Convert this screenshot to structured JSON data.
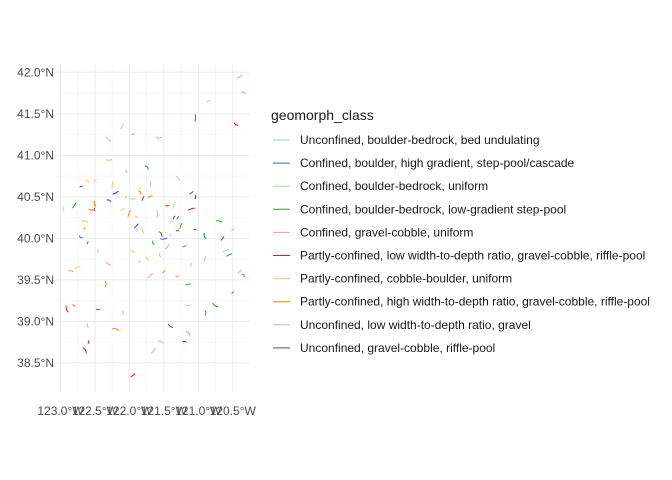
{
  "chart_data": {
    "type": "scatter",
    "title": "",
    "xlabel": "",
    "ylabel": "",
    "xlim": [
      -123.05,
      -120.25
    ],
    "ylim": [
      38.15,
      42.1
    ],
    "grid": true,
    "x_ticks": [
      -123.0,
      -122.5,
      -122.0,
      -121.5,
      -121.0,
      -120.5
    ],
    "x_tick_labels": [
      "123.0°W",
      "122.5°W",
      "122.0°W",
      "121.5°W",
      "121.0°W",
      "120.5°W"
    ],
    "y_ticks": [
      38.5,
      39.0,
      39.5,
      40.0,
      40.5,
      41.0,
      41.5,
      42.0
    ],
    "y_tick_labels": [
      "38.5°N",
      "39.0°N",
      "39.5°N",
      "40.0°N",
      "40.5°N",
      "41.0°N",
      "41.5°N",
      "42.0°N"
    ],
    "legend_title": "geomorph_class",
    "legend_position": "right",
    "series": [
      {
        "name": "Unconfined, boulder-bedrock, bed undulating",
        "color": "#a6cee3",
        "points": [
          [
            -121.55,
            41.22
          ],
          [
            -121.3,
            40.72
          ],
          [
            -121.1,
            39.68
          ],
          [
            -120.6,
            39.85
          ],
          [
            -122.2,
            40.55
          ],
          [
            -121.9,
            40.1
          ],
          [
            -120.4,
            39.6
          ],
          [
            -121.4,
            40.2
          ]
        ]
      },
      {
        "name": "Confined, boulder, high gradient, step-pool/cascade",
        "color": "#1f78b4",
        "points": [
          [
            -122.7,
            40.02
          ],
          [
            -121.05,
            41.45
          ],
          [
            -121.1,
            40.55
          ],
          [
            -121.05,
            40.1
          ],
          [
            -120.9,
            40.03
          ],
          [
            -121.3,
            40.25
          ],
          [
            -121.5,
            40.0
          ],
          [
            -121.75,
            40.85
          ],
          [
            -122.6,
            39.95
          ],
          [
            -120.55,
            39.8
          ]
        ]
      },
      {
        "name": "Confined, boulder-bedrock, uniform",
        "color": "#b2df8a",
        "points": [
          [
            -122.95,
            40.35
          ],
          [
            -122.05,
            40.5
          ],
          [
            -121.95,
            40.48
          ],
          [
            -121.6,
            41.2
          ],
          [
            -121.35,
            40.4
          ],
          [
            -120.85,
            41.65
          ],
          [
            -121.4,
            40.05
          ],
          [
            -122.5,
            40.4
          ],
          [
            -121.85,
            40.6
          ],
          [
            -122.65,
            40.2
          ]
        ]
      },
      {
        "name": "Confined, boulder-bedrock, low-gradient step-pool",
        "color": "#33a02c",
        "points": [
          [
            -121.25,
            40.15
          ],
          [
            -121.2,
            39.9
          ],
          [
            -120.75,
            39.2
          ],
          [
            -120.9,
            39.1
          ],
          [
            -120.5,
            39.35
          ],
          [
            -120.7,
            40.2
          ],
          [
            -121.65,
            39.95
          ],
          [
            -122.8,
            40.4
          ],
          [
            -121.15,
            39.45
          ],
          [
            -120.35,
            39.55
          ]
        ]
      },
      {
        "name": "Confined, gravel-cobble, uniform",
        "color": "#fb9a99",
        "points": [
          [
            -120.4,
            41.95
          ],
          [
            -120.35,
            41.75
          ],
          [
            -121.55,
            39.8
          ],
          [
            -121.45,
            39.9
          ],
          [
            -121.3,
            39.55
          ],
          [
            -121.15,
            38.85
          ],
          [
            -120.9,
            39.75
          ],
          [
            -120.5,
            40.1
          ],
          [
            -122.3,
            39.7
          ],
          [
            -122.1,
            39.1
          ],
          [
            -121.7,
            39.55
          ],
          [
            -122.85,
            39.6
          ]
        ]
      },
      {
        "name": "Partly-confined, low width-to-depth ratio, gravel-cobble, riffle-pool",
        "color": "#e31a1c",
        "points": [
          [
            -121.45,
            40.4
          ],
          [
            -121.55,
            40.05
          ],
          [
            -121.35,
            40.25
          ],
          [
            -121.1,
            40.35
          ],
          [
            -120.45,
            41.38
          ],
          [
            -122.6,
            38.75
          ],
          [
            -121.95,
            38.35
          ],
          [
            -121.2,
            38.75
          ],
          [
            -122.9,
            39.15
          ],
          [
            -120.65,
            40.0
          ],
          [
            -121.3,
            40.1
          ]
        ]
      },
      {
        "name": "Partly-confined, cobble-boulder, uniform",
        "color": "#fdbf6f",
        "points": [
          [
            -122.6,
            40.7
          ],
          [
            -122.25,
            40.65
          ],
          [
            -122.1,
            40.35
          ],
          [
            -121.9,
            40.25
          ],
          [
            -121.8,
            40.1
          ],
          [
            -122.5,
            40.7
          ],
          [
            -122.3,
            40.95
          ],
          [
            -121.75,
            39.75
          ],
          [
            -122.45,
            39.85
          ],
          [
            -122.75,
            39.65
          ],
          [
            -121.95,
            39.85
          ],
          [
            -121.6,
            40.3
          ]
        ]
      },
      {
        "name": "Partly-confined, high width-to-depth ratio, gravel-cobble, riffle-pool",
        "color": "#ff7f00",
        "points": [
          [
            -122.5,
            40.42
          ],
          [
            -122.65,
            40.12
          ],
          [
            -122.55,
            40.35
          ],
          [
            -121.85,
            40.55
          ],
          [
            -122.0,
            40.3
          ],
          [
            -121.7,
            40.5
          ],
          [
            -122.8,
            39.2
          ],
          [
            -122.35,
            39.45
          ],
          [
            -121.5,
            39.6
          ],
          [
            -122.2,
            38.9
          ]
        ]
      },
      {
        "name": "Unconfined, low width-to-depth ratio, gravel",
        "color": "#cab2d6",
        "points": [
          [
            -122.1,
            41.35
          ],
          [
            -121.95,
            41.25
          ],
          [
            -122.3,
            41.2
          ],
          [
            -121.7,
            40.65
          ],
          [
            -121.85,
            39.72
          ],
          [
            -121.55,
            38.75
          ],
          [
            -122.6,
            38.95
          ],
          [
            -121.65,
            38.65
          ],
          [
            -121.15,
            39.2
          ],
          [
            -122.05,
            40.8
          ]
        ]
      },
      {
        "name": "Unconfined, gravel-cobble, riffle-pool",
        "color": "#6a3d9a",
        "points": [
          [
            -122.2,
            40.55
          ],
          [
            -122.3,
            40.45
          ],
          [
            -122.5,
            40.35
          ],
          [
            -121.9,
            40.15
          ],
          [
            -122.45,
            39.15
          ],
          [
            -122.65,
            38.65
          ],
          [
            -121.8,
            40.48
          ],
          [
            -122.7,
            40.62
          ],
          [
            -121.4,
            38.95
          ],
          [
            -121.05,
            40.5
          ]
        ]
      }
    ]
  }
}
